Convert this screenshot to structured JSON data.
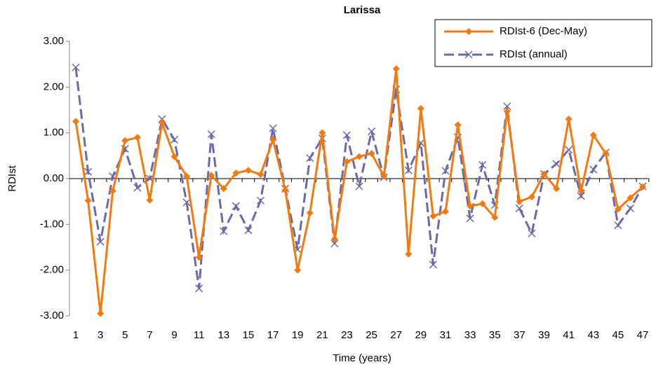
{
  "chart_data": {
    "type": "line",
    "title": "Larissa",
    "xlabel": "Time (years)",
    "ylabel": "RDIst",
    "categories": [
      1,
      null,
      3,
      null,
      5,
      null,
      7,
      null,
      9,
      null,
      11,
      null,
      13,
      null,
      15,
      null,
      17,
      null,
      19,
      null,
      21,
      null,
      23,
      null,
      25,
      null,
      27,
      null,
      29,
      null,
      31,
      null,
      33,
      null,
      35,
      null,
      37,
      null,
      39,
      null,
      41,
      null,
      43,
      null,
      45,
      null,
      47
    ],
    "ylim": [
      -3,
      3
    ],
    "yticks": [
      {
        "value": -3,
        "label": "-3.00"
      },
      {
        "value": -2,
        "label": "-2.00"
      },
      {
        "value": -1,
        "label": "-1.00"
      },
      {
        "value": 0,
        "label": "0.00"
      },
      {
        "value": 1,
        "label": "1.00"
      },
      {
        "value": 2,
        "label": "2.00"
      },
      {
        "value": 3,
        "label": "3.00"
      }
    ],
    "legend": "upper right",
    "series": [
      {
        "name": "RDIst-6 (Dec-May)",
        "color": "#f47a10",
        "marker": "diamond",
        "dashed": false,
        "values": [
          1.25,
          -0.48,
          -2.95,
          -0.27,
          0.83,
          0.9,
          -0.47,
          1.22,
          0.48,
          0.05,
          -1.72,
          0.07,
          -0.22,
          0.12,
          0.18,
          0.09,
          0.85,
          -0.25,
          -2.0,
          -0.75,
          1.0,
          -1.32,
          0.37,
          0.48,
          0.55,
          0.05,
          2.4,
          -1.65,
          1.53,
          -0.82,
          -0.72,
          1.17,
          -0.6,
          -0.55,
          -0.85,
          1.47,
          -0.5,
          -0.4,
          0.1,
          -0.22,
          1.3,
          -0.27,
          0.95,
          0.55,
          -0.67,
          -0.42,
          -0.18
        ]
      },
      {
        "name": "RDIst (annual)",
        "color": "#6b6aa8",
        "marker": "x",
        "dashed": true,
        "values": [
          2.43,
          0.15,
          -1.38,
          0.05,
          0.65,
          -0.2,
          0.0,
          1.3,
          0.85,
          -0.52,
          -2.4,
          0.97,
          -1.15,
          -0.6,
          -1.13,
          -0.48,
          1.1,
          -0.22,
          -1.55,
          0.45,
          0.88,
          -1.42,
          0.95,
          -0.17,
          1.03,
          0.03,
          1.95,
          0.18,
          0.78,
          -1.88,
          0.17,
          0.9,
          -0.87,
          0.3,
          -0.58,
          1.58,
          -0.65,
          -1.2,
          0.1,
          0.32,
          0.63,
          -0.38,
          0.2,
          0.57,
          -1.02,
          -0.65,
          -0.17
        ]
      }
    ]
  }
}
